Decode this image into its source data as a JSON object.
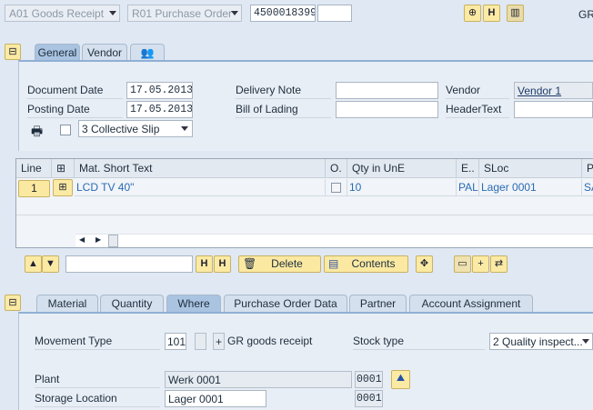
{
  "header": {
    "action": "A01 Goods Receipt",
    "reference": "R01 Purchase Order",
    "po_number": "4500018399",
    "po_item": "",
    "right_text": "GR"
  },
  "header_tabs": [
    {
      "label": "General"
    },
    {
      "label": "Vendor"
    },
    {
      "label": "",
      "icon": "partners-icon"
    }
  ],
  "general": {
    "document_date_label": "Document Date",
    "document_date": "17.05.2013",
    "posting_date_label": "Posting Date",
    "posting_date": "17.05.2013",
    "print_checked": false,
    "print_option": "3 Collective Slip",
    "delivery_note_label": "Delivery Note",
    "delivery_note": "",
    "bill_of_lading_label": "Bill of Lading",
    "bill_of_lading": "",
    "vendor_label": "Vendor",
    "vendor": "Vendor 1",
    "header_text_label": "HeaderText",
    "header_text": ""
  },
  "table": {
    "columns": [
      "Line",
      "",
      "Mat. Short Text",
      "O.",
      "Qty in UnE",
      "E..",
      "SLoc",
      "P"
    ],
    "rows": [
      {
        "line": "1",
        "material": "LCD TV 40\"",
        "ok": false,
        "qty": "10",
        "unit": "PAL",
        "sloc": "Lager 0001",
        "p": "SA"
      }
    ]
  },
  "toolbar": {
    "search": "",
    "delete": "Delete",
    "contents": "Contents"
  },
  "detail_tabs": [
    {
      "label": "Material"
    },
    {
      "label": "Quantity"
    },
    {
      "label": "Where",
      "selected": true
    },
    {
      "label": "Purchase Order Data"
    },
    {
      "label": "Partner"
    },
    {
      "label": "Account Assignment"
    }
  ],
  "where": {
    "movement_type_label": "Movement Type",
    "movement_type": "101",
    "special_stock": "",
    "sign": "+",
    "movement_text": "GR goods receipt",
    "stock_type_label": "Stock type",
    "stock_type": "2 Quality inspect...",
    "plant_label": "Plant",
    "plant_name": "Werk 0001",
    "plant_code": "0001",
    "sloc_label": "Storage Location",
    "sloc_name": "Lager 0001",
    "sloc_code": "0001"
  }
}
